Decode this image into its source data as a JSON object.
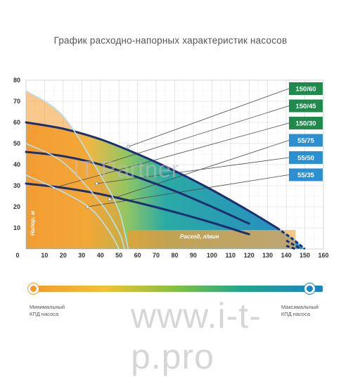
{
  "title": "График расходно-напорных характеристик насосов",
  "chart_data": {
    "type": "line",
    "xlabel": "Расход, л/мин",
    "ylabel": "Напор, м",
    "xlim": [
      0,
      160
    ],
    "ylim": [
      0,
      80
    ],
    "x_ticks": [
      "0",
      "10",
      "20",
      "30",
      "40",
      "50",
      "60",
      "70",
      "80",
      "90",
      "100",
      "110",
      "120",
      "130",
      "140",
      "150",
      "160"
    ],
    "y_ticks": [
      "10",
      "20",
      "30",
      "40",
      "50",
      "60",
      "70",
      "80"
    ],
    "grid": true,
    "series": [
      {
        "name": "150/60",
        "tag_color": "#1f8a4c",
        "points": [
          [
            0,
            60
          ],
          [
            20,
            57
          ],
          [
            40,
            52
          ],
          [
            60,
            45
          ],
          [
            80,
            37
          ],
          [
            100,
            28
          ],
          [
            120,
            18
          ],
          [
            135,
            10
          ],
          [
            143,
            5
          ],
          [
            150,
            0
          ]
        ]
      },
      {
        "name": "150/45",
        "tag_color": "#1f8a4c",
        "points": [
          [
            0,
            46
          ],
          [
            20,
            44
          ],
          [
            40,
            40
          ],
          [
            60,
            34
          ],
          [
            80,
            27.5
          ],
          [
            100,
            20
          ],
          [
            120,
            12
          ],
          [
            140,
            4
          ],
          [
            148,
            0
          ]
        ]
      },
      {
        "name": "150/30",
        "tag_color": "#1f8a4c",
        "points": [
          [
            0,
            31
          ],
          [
            20,
            29
          ],
          [
            40,
            26
          ],
          [
            60,
            22
          ],
          [
            80,
            17.5
          ],
          [
            100,
            12.5
          ],
          [
            120,
            7
          ],
          [
            140,
            1.5
          ],
          [
            145,
            0
          ]
        ]
      },
      {
        "name": "55/75",
        "tag_color": "#2b8fd1",
        "points": [
          [
            0,
            75
          ],
          [
            20,
            63
          ],
          [
            40,
            35
          ],
          [
            50,
            18
          ],
          [
            55,
            0
          ]
        ]
      },
      {
        "name": "55/50",
        "tag_color": "#2b8fd1",
        "points": [
          [
            0,
            50
          ],
          [
            20,
            41
          ],
          [
            40,
            22
          ],
          [
            50,
            8
          ],
          [
            53,
            0
          ]
        ]
      },
      {
        "name": "55/35",
        "tag_color": "#2b8fd1",
        "points": [
          [
            0,
            35
          ],
          [
            20,
            27
          ],
          [
            35,
            19
          ],
          [
            45,
            8
          ],
          [
            50,
            0
          ]
        ]
      }
    ],
    "efficiency_scale": {
      "min_label_1": "Минимальный",
      "min_label_2": "КПД насоса",
      "max_label_1": "Максимальный",
      "max_label_2": "КПД насоса",
      "colors": [
        "#f39a2e",
        "#f2c233",
        "#7fc13f",
        "#1fa68c",
        "#1b83c4"
      ]
    }
  },
  "watermark_logo": "IT Partner",
  "watermark_url": "www.i-t-p.pro"
}
